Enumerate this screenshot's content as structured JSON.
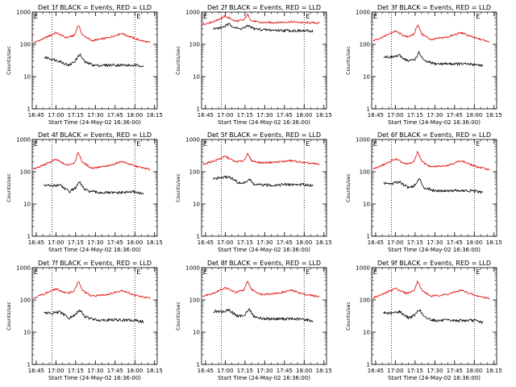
{
  "colors": {
    "events": "#000000",
    "lld": "#e00000",
    "axis": "#000000",
    "marker": "#000000"
  },
  "chart_data": [
    {
      "type": "line",
      "title": "Det 1f BLACK = Events, RED = LLD",
      "ylabel": "Counts/sec",
      "xlabel": "Start Time (24-May-02 16:36:00)",
      "ylim": [
        1,
        1000
      ],
      "yscale": "log",
      "xlim": [
        "16:42",
        "18:17"
      ],
      "grid": false,
      "xticks": [
        "16:45",
        "17:00",
        "17:15",
        "17:30",
        "17:45",
        "18:00",
        "18:15"
      ],
      "yticks": [
        "1",
        "10",
        "100",
        "1000"
      ],
      "marker_lines": [
        "16:57",
        "18:00"
      ],
      "marker_label_left": "E",
      "marker_label_right": "E",
      "series": [
        {
          "role": "lld",
          "x": [
            "16:43",
            "16:52",
            "17:00",
            "17:08",
            "17:14",
            "17:17",
            "17:20",
            "17:27",
            "17:40",
            "17:50",
            "18:00",
            "18:12"
          ],
          "values": [
            110,
            160,
            230,
            160,
            190,
            400,
            200,
            130,
            160,
            220,
            150,
            110
          ]
        },
        {
          "role": "events",
          "x": [
            "16:51",
            "16:57",
            "17:03",
            "17:10",
            "17:15",
            "17:18",
            "17:22",
            "17:30",
            "17:45",
            "18:00",
            "18:07"
          ],
          "values": [
            40,
            35,
            30,
            22,
            32,
            50,
            28,
            22,
            23,
            22,
            22
          ]
        }
      ]
    },
    {
      "type": "line",
      "title": "Det 2f BLACK = Events, RED = LLD",
      "ylabel": "Counts/sec",
      "xlabel": "Start Time (24-May-02 16:36:00)",
      "ylim": [
        1,
        1000
      ],
      "yscale": "log",
      "xlim": [
        "16:42",
        "18:17"
      ],
      "grid": false,
      "xticks": [
        "16:45",
        "17:00",
        "17:15",
        "17:30",
        "17:45",
        "18:00",
        "18:15"
      ],
      "yticks": [
        "1",
        "10",
        "100",
        "1000"
      ],
      "marker_lines": [
        "16:57",
        "18:00"
      ],
      "marker_label_left": "E",
      "marker_label_right": "E",
      "series": [
        {
          "role": "lld",
          "x": [
            "16:43",
            "16:52",
            "17:00",
            "17:08",
            "17:14",
            "17:17",
            "17:20",
            "17:27",
            "17:40",
            "17:50",
            "18:00",
            "18:12"
          ],
          "values": [
            420,
            520,
            750,
            520,
            560,
            850,
            540,
            470,
            480,
            500,
            470,
            460
          ]
        },
        {
          "role": "events",
          "x": [
            "16:51",
            "16:57",
            "17:03",
            "17:10",
            "17:15",
            "17:18",
            "17:22",
            "17:30",
            "17:45",
            "18:00",
            "18:07"
          ],
          "values": [
            300,
            330,
            420,
            300,
            330,
            380,
            300,
            280,
            270,
            260,
            260
          ]
        }
      ]
    },
    {
      "type": "line",
      "title": "Det 3f BLACK = Events, RED = LLD",
      "ylabel": "Counts/sec",
      "xlabel": "Start Time (24-May-02 16:36:00)",
      "ylim": [
        1,
        1000
      ],
      "yscale": "log",
      "xlim": [
        "16:42",
        "18:17"
      ],
      "grid": false,
      "xticks": [
        "16:45",
        "17:00",
        "17:15",
        "17:30",
        "17:45",
        "18:00",
        "18:15"
      ],
      "yticks": [
        "1",
        "10",
        "100",
        "1000"
      ],
      "marker_lines": [
        "16:57",
        "18:00"
      ],
      "marker_label_left": "E",
      "marker_label_right": "E",
      "series": [
        {
          "role": "lld",
          "x": [
            "16:43",
            "16:52",
            "17:00",
            "17:08",
            "17:14",
            "17:17",
            "17:20",
            "17:27",
            "17:40",
            "17:50",
            "18:00",
            "18:12"
          ],
          "values": [
            130,
            180,
            260,
            170,
            200,
            420,
            210,
            140,
            170,
            230,
            160,
            120
          ]
        },
        {
          "role": "events",
          "x": [
            "16:51",
            "16:57",
            "17:03",
            "17:10",
            "17:15",
            "17:18",
            "17:22",
            "17:30",
            "17:45",
            "18:00",
            "18:07"
          ],
          "values": [
            42,
            40,
            45,
            30,
            35,
            55,
            30,
            25,
            25,
            24,
            22
          ]
        }
      ]
    },
    {
      "type": "line",
      "title": "Det 4f BLACK = Events, RED = LLD",
      "ylabel": "Counts/sec",
      "xlabel": "Start Time (24-May-02 16:36:00)",
      "ylim": [
        1,
        1000
      ],
      "yscale": "log",
      "xlim": [
        "16:42",
        "18:17"
      ],
      "grid": false,
      "xticks": [
        "16:45",
        "17:00",
        "17:15",
        "17:30",
        "17:45",
        "18:00",
        "18:15"
      ],
      "yticks": [
        "1",
        "10",
        "100",
        "1000"
      ],
      "marker_lines": [
        "16:57",
        "18:00"
      ],
      "marker_label_left": "E",
      "marker_label_right": "E",
      "series": [
        {
          "role": "lld",
          "x": [
            "16:43",
            "16:52",
            "17:00",
            "17:08",
            "17:14",
            "17:17",
            "17:20",
            "17:27",
            "17:40",
            "17:50",
            "18:00",
            "18:12"
          ],
          "values": [
            120,
            170,
            240,
            160,
            190,
            400,
            200,
            130,
            150,
            210,
            150,
            115
          ]
        },
        {
          "role": "events",
          "x": [
            "16:51",
            "16:57",
            "17:03",
            "17:10",
            "17:15",
            "17:18",
            "17:22",
            "17:30",
            "17:45",
            "18:00",
            "18:07"
          ],
          "values": [
            38,
            36,
            40,
            24,
            32,
            48,
            27,
            23,
            22,
            24,
            20
          ]
        }
      ]
    },
    {
      "type": "line",
      "title": "Det 5f BLACK = Events, RED = LLD",
      "ylabel": "Counts/sec",
      "xlabel": "Start Time (24-May-02 16:36:00)",
      "ylim": [
        1,
        1000
      ],
      "yscale": "log",
      "xlim": [
        "16:42",
        "18:17"
      ],
      "grid": false,
      "xticks": [
        "16:45",
        "17:00",
        "17:15",
        "17:30",
        "17:45",
        "18:00",
        "18:15"
      ],
      "yticks": [
        "1",
        "10",
        "100",
        "1000"
      ],
      "marker_lines": [
        "16:57",
        "18:00"
      ],
      "marker_label_left": "E",
      "marker_label_right": "E",
      "series": [
        {
          "role": "lld",
          "x": [
            "16:43",
            "16:52",
            "17:00",
            "17:08",
            "17:14",
            "17:17",
            "17:20",
            "17:27",
            "17:40",
            "17:50",
            "18:00",
            "18:12"
          ],
          "values": [
            170,
            220,
            300,
            200,
            220,
            360,
            220,
            190,
            200,
            220,
            190,
            170
          ]
        },
        {
          "role": "events",
          "x": [
            "16:51",
            "16:57",
            "17:03",
            "17:10",
            "17:15",
            "17:18",
            "17:22",
            "17:30",
            "17:45",
            "18:00",
            "18:07"
          ],
          "values": [
            60,
            65,
            70,
            45,
            45,
            60,
            40,
            38,
            40,
            40,
            38
          ]
        }
      ]
    },
    {
      "type": "line",
      "title": "Det 6f BLACK = Events, RED = LLD",
      "ylabel": "Counts/sec",
      "xlabel": "Start Time (24-May-02 16:36:00)",
      "ylim": [
        1,
        1000
      ],
      "yscale": "log",
      "xlim": [
        "16:42",
        "18:17"
      ],
      "grid": false,
      "xticks": [
        "16:45",
        "17:00",
        "17:15",
        "17:30",
        "17:45",
        "18:00",
        "18:15"
      ],
      "yticks": [
        "1",
        "10",
        "100",
        "1000"
      ],
      "marker_lines": [
        "16:57",
        "18:00"
      ],
      "marker_label_left": "E",
      "marker_label_right": "E",
      "series": [
        {
          "role": "lld",
          "x": [
            "16:43",
            "16:52",
            "17:00",
            "17:08",
            "17:14",
            "17:17",
            "17:20",
            "17:27",
            "17:40",
            "17:50",
            "18:00",
            "18:12"
          ],
          "values": [
            120,
            170,
            250,
            170,
            200,
            430,
            210,
            140,
            160,
            220,
            150,
            115
          ]
        },
        {
          "role": "events",
          "x": [
            "16:51",
            "16:57",
            "17:03",
            "17:10",
            "17:15",
            "17:18",
            "17:22",
            "17:30",
            "17:45",
            "18:00",
            "18:07"
          ],
          "values": [
            45,
            42,
            50,
            32,
            38,
            60,
            32,
            26,
            26,
            25,
            22
          ]
        }
      ]
    },
    {
      "type": "line",
      "title": "Det 7f BLACK = Events, RED = LLD",
      "ylabel": "Counts/sec",
      "xlabel": "Start Time (24-May-02 16:36:00)",
      "ylim": [
        1,
        1000
      ],
      "yscale": "log",
      "xlim": [
        "16:42",
        "18:17"
      ],
      "grid": false,
      "xticks": [
        "16:45",
        "17:00",
        "17:15",
        "17:30",
        "17:45",
        "18:00",
        "18:15"
      ],
      "yticks": [
        "1",
        "10",
        "100",
        "1000"
      ],
      "marker_lines": [
        "16:57",
        "18:00"
      ],
      "marker_label_left": "E",
      "marker_label_right": "E",
      "series": [
        {
          "role": "lld",
          "x": [
            "16:43",
            "16:52",
            "17:00",
            "17:08",
            "17:14",
            "17:17",
            "17:20",
            "17:27",
            "17:40",
            "17:50",
            "18:00",
            "18:12"
          ],
          "values": [
            115,
            160,
            220,
            160,
            190,
            380,
            200,
            130,
            150,
            200,
            140,
            110
          ]
        },
        {
          "role": "events",
          "x": [
            "16:51",
            "16:57",
            "17:03",
            "17:10",
            "17:15",
            "17:18",
            "17:22",
            "17:30",
            "17:45",
            "18:00",
            "18:07"
          ],
          "values": [
            40,
            38,
            42,
            27,
            35,
            50,
            30,
            24,
            24,
            23,
            21
          ]
        }
      ]
    },
    {
      "type": "line",
      "title": "Det 8f BLACK = Events, RED = LLD",
      "ylabel": "Counts/sec",
      "xlabel": "Start Time (24-May-02 16:36:00)",
      "ylim": [
        1,
        1000
      ],
      "yscale": "log",
      "xlim": [
        "16:42",
        "18:17"
      ],
      "grid": false,
      "xticks": [
        "16:45",
        "17:00",
        "17:15",
        "17:30",
        "17:45",
        "18:00",
        "18:15"
      ],
      "yticks": [
        "1",
        "10",
        "100",
        "1000"
      ],
      "marker_lines": [
        "16:57",
        "18:00"
      ],
      "marker_label_left": "E",
      "marker_label_right": "E",
      "series": [
        {
          "role": "lld",
          "x": [
            "16:43",
            "16:52",
            "17:00",
            "17:08",
            "17:14",
            "17:17",
            "17:20",
            "17:27",
            "17:40",
            "17:50",
            "18:00",
            "18:12"
          ],
          "values": [
            130,
            170,
            240,
            170,
            200,
            380,
            210,
            150,
            160,
            200,
            150,
            125
          ]
        },
        {
          "role": "events",
          "x": [
            "16:51",
            "16:57",
            "17:03",
            "17:10",
            "17:15",
            "17:18",
            "17:22",
            "17:30",
            "17:45",
            "18:00",
            "18:07"
          ],
          "values": [
            45,
            42,
            48,
            30,
            36,
            52,
            30,
            26,
            26,
            25,
            22
          ]
        }
      ]
    },
    {
      "type": "line",
      "title": "Det 9f BLACK = Events, RED = LLD",
      "ylabel": "Counts/sec",
      "xlabel": "Start Time (24-May-02 16:36:00)",
      "ylim": [
        1,
        1000
      ],
      "yscale": "log",
      "xlim": [
        "16:42",
        "18:17"
      ],
      "grid": false,
      "xticks": [
        "16:45",
        "17:00",
        "17:15",
        "17:30",
        "17:45",
        "18:00",
        "18:15"
      ],
      "yticks": [
        "1",
        "10",
        "100",
        "1000"
      ],
      "marker_lines": [
        "16:57",
        "18:00"
      ],
      "marker_label_left": "E",
      "marker_label_right": "E",
      "series": [
        {
          "role": "lld",
          "x": [
            "16:43",
            "16:52",
            "17:00",
            "17:08",
            "17:14",
            "17:17",
            "17:20",
            "17:27",
            "17:40",
            "17:50",
            "18:00",
            "18:12"
          ],
          "values": [
            115,
            160,
            230,
            160,
            190,
            390,
            200,
            130,
            150,
            200,
            140,
            110
          ]
        },
        {
          "role": "events",
          "x": [
            "16:51",
            "16:57",
            "17:03",
            "17:10",
            "17:15",
            "17:18",
            "17:22",
            "17:30",
            "17:45",
            "18:00",
            "18:07"
          ],
          "values": [
            40,
            38,
            44,
            28,
            34,
            52,
            29,
            23,
            23,
            23,
            20
          ]
        }
      ]
    }
  ]
}
